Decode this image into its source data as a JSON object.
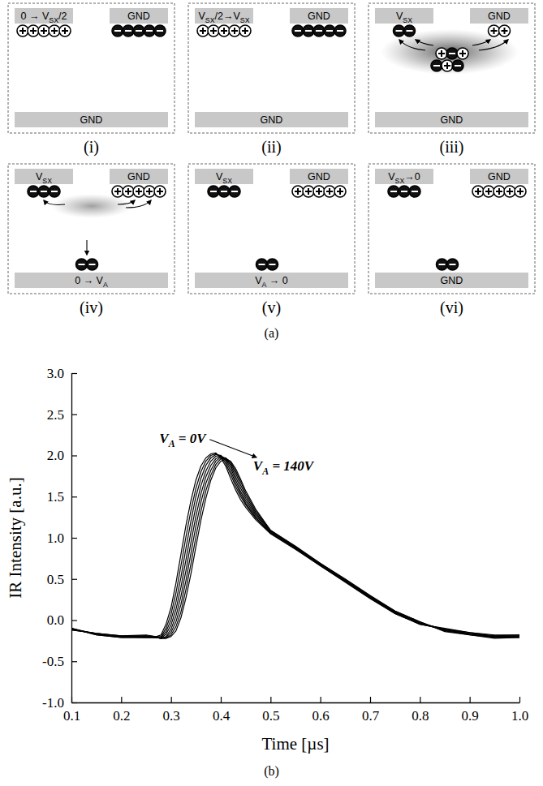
{
  "diagram": {
    "caption": "(a)",
    "panels": [
      {
        "label": "(i)",
        "left": [
          {
            "text": "0 → V"
          },
          {
            "text": "SX",
            "sub": true
          },
          {
            "text": "/2"
          }
        ],
        "right": [
          {
            "text": "GND"
          }
        ],
        "bottom": [
          {
            "text": "GND"
          }
        ]
      },
      {
        "label": "(ii)",
        "left": [
          {
            "text": "V"
          },
          {
            "text": "SX",
            "sub": true
          },
          {
            "text": "/2→V"
          },
          {
            "text": "SX",
            "sub": true
          }
        ],
        "right": [
          {
            "text": "GND"
          }
        ],
        "bottom": [
          {
            "text": "GND"
          }
        ]
      },
      {
        "label": "(iii)",
        "left": [
          {
            "text": "V"
          },
          {
            "text": "SX",
            "sub": true
          }
        ],
        "right": [
          {
            "text": "GND"
          }
        ],
        "bottom": [
          {
            "text": "GND"
          }
        ]
      },
      {
        "label": "(iv)",
        "left": [
          {
            "text": "V"
          },
          {
            "text": "SX",
            "sub": true
          }
        ],
        "right": [
          {
            "text": "GND"
          }
        ],
        "bottom": [
          {
            "text": "0 → V"
          },
          {
            "text": "A",
            "sub": true
          }
        ]
      },
      {
        "label": "(v)",
        "left": [
          {
            "text": "V"
          },
          {
            "text": "SX",
            "sub": true
          }
        ],
        "right": [
          {
            "text": "GND"
          }
        ],
        "bottom": [
          {
            "text": "V"
          },
          {
            "text": "A",
            "sub": true
          },
          {
            "text": " → 0"
          }
        ]
      },
      {
        "label": "(vi)",
        "left": [
          {
            "text": "V"
          },
          {
            "text": "SX",
            "sub": true
          },
          {
            "text": "→0"
          }
        ],
        "right": [
          {
            "text": "GND"
          }
        ],
        "bottom": [
          {
            "text": "GND"
          }
        ]
      }
    ]
  },
  "chart_data": {
    "type": "line",
    "caption": "(b)",
    "x_label": "Time [µs]",
    "y_label": "IR Intensity [a.u.]",
    "xlim": [
      0.1,
      1
    ],
    "ylim": [
      -1,
      3
    ],
    "xticks": [
      0.1,
      0.2,
      0.3,
      0.4,
      0.5,
      0.6,
      0.7,
      0.8,
      0.9,
      {
        "value": 1,
        "label": "1.0"
      }
    ],
    "yticks": [
      {
        "value": -1,
        "label": "-1.0"
      },
      -0.5,
      {
        "value": 0,
        "label": "0.0"
      },
      0.5,
      {
        "value": 1,
        "label": "1.0"
      },
      1.5,
      {
        "value": 2,
        "label": "2.0"
      },
      2.5,
      {
        "value": 3,
        "label": "3.0"
      }
    ],
    "grid": false,
    "x": [
      0.1,
      0.15,
      0.2,
      0.25,
      0.27,
      0.28,
      0.29,
      0.3,
      0.31,
      0.32,
      0.33,
      0.34,
      0.35,
      0.36,
      0.37,
      0.38,
      0.39,
      0.4,
      0.41,
      0.42,
      0.43,
      0.44,
      0.45,
      0.47,
      0.5,
      0.55,
      0.6,
      0.65,
      0.7,
      0.75,
      0.8,
      0.85,
      0.9,
      0.95,
      1.0
    ],
    "series": [
      {
        "color": "#000000",
        "values": [
          -0.12,
          -0.16,
          -0.19,
          -0.18,
          -0.2,
          -0.18,
          -0.05,
          0.15,
          0.45,
          0.8,
          1.15,
          1.45,
          1.7,
          1.87,
          1.97,
          2.02,
          2.03,
          1.97,
          1.87,
          1.72,
          1.58,
          1.46,
          1.37,
          1.22,
          1.05,
          0.86,
          0.66,
          0.46,
          0.26,
          0.08,
          -0.05,
          -0.1,
          -0.15,
          -0.18,
          -0.18
        ]
      },
      {
        "color": "#000000",
        "values": [
          -0.12,
          -0.16,
          -0.19,
          -0.19,
          -0.2,
          -0.2,
          -0.1,
          0.07,
          0.33,
          0.66,
          1.01,
          1.33,
          1.6,
          1.8,
          1.93,
          2.0,
          2.02,
          1.99,
          1.9,
          1.77,
          1.62,
          1.5,
          1.4,
          1.24,
          1.06,
          0.87,
          0.66,
          0.47,
          0.27,
          0.08,
          -0.05,
          -0.11,
          -0.15,
          -0.19,
          -0.18
        ]
      },
      {
        "color": "#000000",
        "values": [
          -0.11,
          -0.16,
          -0.2,
          -0.19,
          -0.21,
          -0.21,
          -0.14,
          0.0,
          0.22,
          0.52,
          0.87,
          1.2,
          1.5,
          1.72,
          1.88,
          1.97,
          2.01,
          2.0,
          1.93,
          1.81,
          1.66,
          1.53,
          1.42,
          1.25,
          1.06,
          0.87,
          0.67,
          0.47,
          0.27,
          0.09,
          -0.04,
          -0.11,
          -0.16,
          -0.19,
          -0.19
        ]
      },
      {
        "color": "#000000",
        "values": [
          -0.11,
          -0.17,
          -0.2,
          -0.2,
          -0.21,
          -0.22,
          -0.17,
          -0.06,
          0.13,
          0.4,
          0.73,
          1.07,
          1.38,
          1.63,
          1.81,
          1.93,
          1.99,
          2.0,
          1.95,
          1.85,
          1.7,
          1.56,
          1.45,
          1.27,
          1.07,
          0.88,
          0.67,
          0.48,
          0.28,
          0.09,
          -0.04,
          -0.12,
          -0.16,
          -0.2,
          -0.19
        ]
      },
      {
        "color": "#000000",
        "values": [
          -0.11,
          -0.17,
          -0.2,
          -0.2,
          -0.21,
          -0.22,
          -0.2,
          -0.11,
          0.05,
          0.29,
          0.6,
          0.94,
          1.26,
          1.53,
          1.74,
          1.88,
          1.96,
          1.99,
          1.96,
          1.88,
          1.74,
          1.6,
          1.48,
          1.29,
          1.08,
          0.88,
          0.68,
          0.48,
          0.28,
          0.1,
          -0.03,
          -0.12,
          -0.17,
          -0.2,
          -0.2
        ]
      },
      {
        "color": "#000000",
        "values": [
          -0.1,
          -0.17,
          -0.2,
          -0.21,
          -0.21,
          -0.22,
          -0.21,
          -0.15,
          -0.02,
          0.19,
          0.48,
          0.81,
          1.14,
          1.43,
          1.66,
          1.82,
          1.93,
          1.98,
          1.97,
          1.9,
          1.78,
          1.64,
          1.51,
          1.31,
          1.08,
          0.89,
          0.68,
          0.49,
          0.29,
          0.1,
          -0.03,
          -0.13,
          -0.17,
          -0.21,
          -0.2
        ]
      },
      {
        "color": "#000000",
        "values": [
          -0.1,
          -0.18,
          -0.21,
          -0.21,
          -0.21,
          -0.22,
          -0.22,
          -0.18,
          -0.08,
          0.1,
          0.37,
          0.68,
          1.01,
          1.32,
          1.57,
          1.76,
          1.89,
          1.96,
          1.97,
          1.92,
          1.81,
          1.68,
          1.54,
          1.33,
          1.09,
          0.89,
          0.69,
          0.49,
          0.29,
          0.11,
          -0.02,
          -0.13,
          -0.18,
          -0.21,
          -0.21
        ]
      },
      {
        "color": "#000000",
        "values": [
          -0.1,
          -0.18,
          -0.21,
          -0.21,
          -0.21,
          -0.22,
          -0.22,
          -0.2,
          -0.13,
          0.03,
          0.27,
          0.56,
          0.89,
          1.21,
          1.48,
          1.7,
          1.85,
          1.93,
          1.96,
          1.93,
          1.84,
          1.71,
          1.57,
          1.35,
          1.09,
          0.9,
          0.69,
          0.5,
          0.3,
          0.11,
          -0.02,
          -0.14,
          -0.18,
          -0.22,
          -0.21
        ]
      }
    ],
    "annotations": [
      {
        "parts": [
          {
            "text": "V"
          },
          {
            "text": "A",
            "sub": true
          },
          {
            "text": " = 0V"
          }
        ],
        "x": 0.37,
        "y": 2.15
      },
      {
        "parts": [
          {
            "text": "V"
          },
          {
            "text": "A",
            "sub": true
          },
          {
            "text": " = 140V"
          }
        ],
        "x": 0.465,
        "y": 1.82
      }
    ]
  }
}
